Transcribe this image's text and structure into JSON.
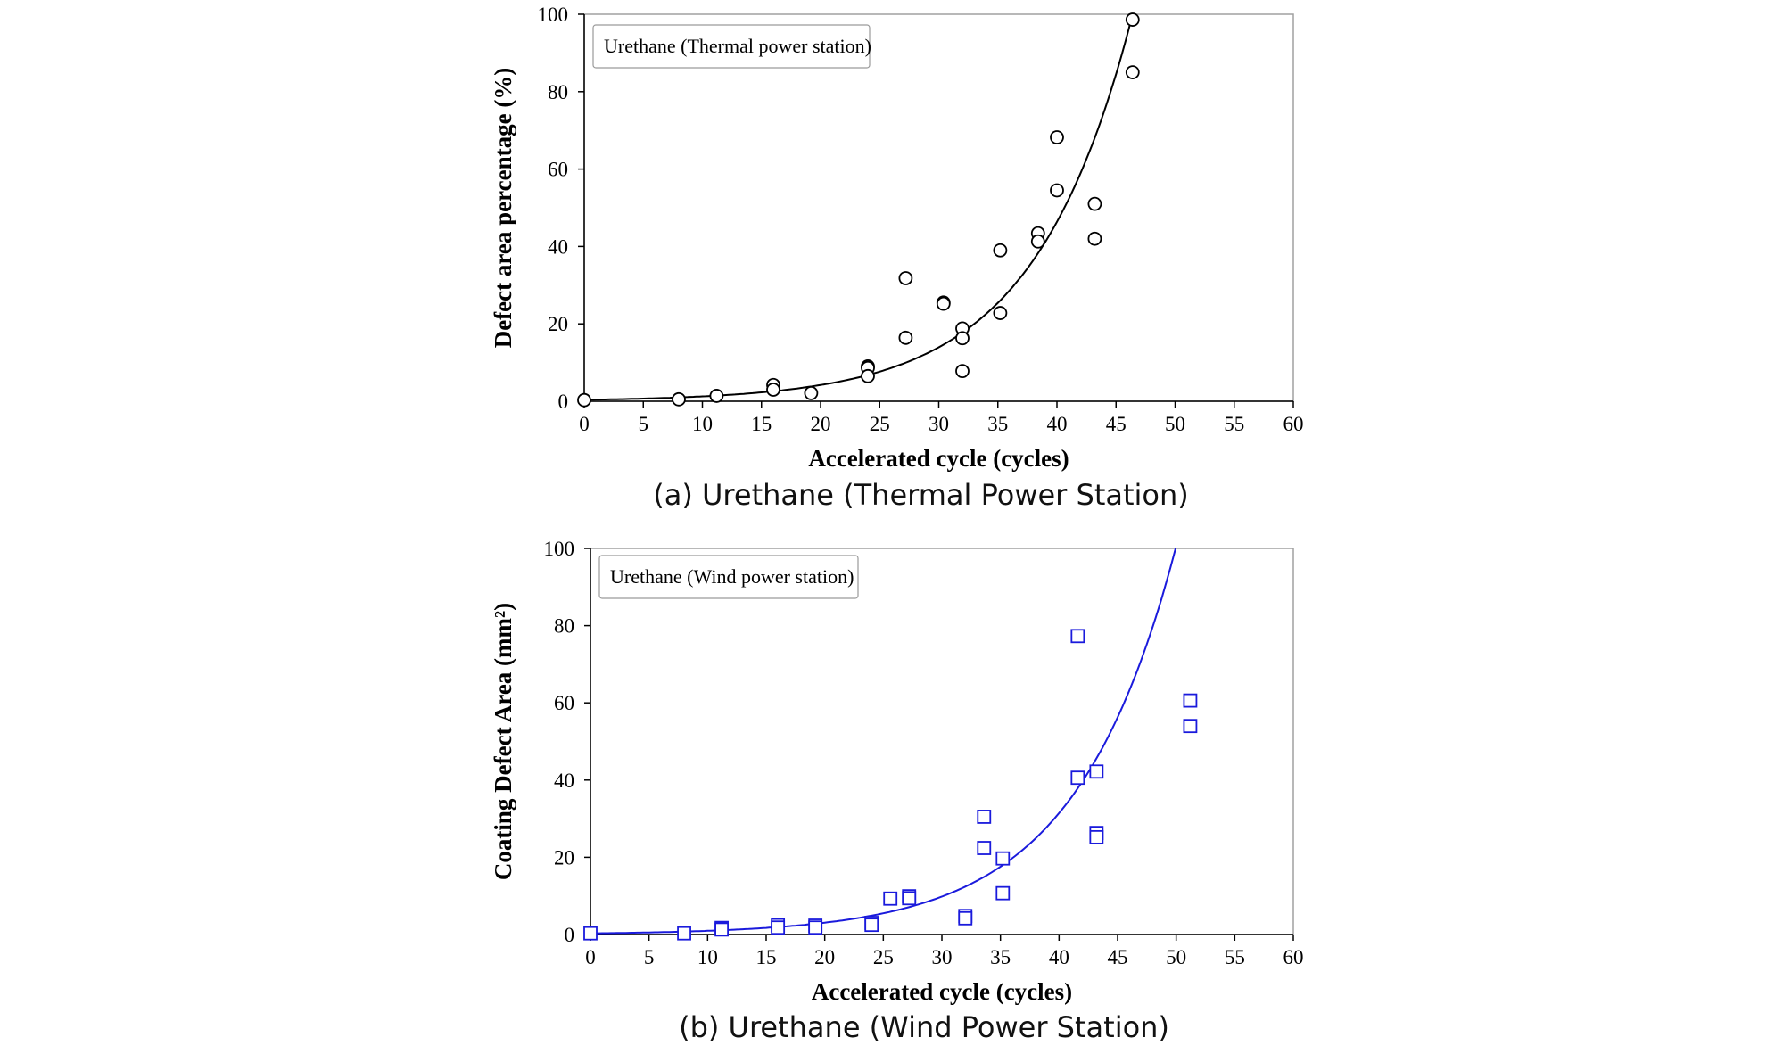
{
  "chart_data": [
    {
      "type": "scatter",
      "id": "thermal",
      "color": "#000000",
      "marker": "circle",
      "ylabel": "Defect area percentage (%)",
      "xlabel": "Accelerated cycle (cycles)",
      "legend": "Urethane (Thermal power station)",
      "legend_position": "top-left",
      "caption": "(a) Urethane (Thermal Power Station)",
      "xlim": [
        0,
        60
      ],
      "ylim": [
        0,
        100
      ],
      "xticks": [
        "0",
        "5",
        "10",
        "15",
        "20",
        "25",
        "30",
        "35",
        "40",
        "45",
        "50",
        "55",
        "60"
      ],
      "yticks": [
        "0",
        "20",
        "40",
        "60",
        "80",
        "100"
      ],
      "grid": false,
      "points": [
        {
          "x": 0,
          "y": 0.3
        },
        {
          "x": 8,
          "y": 0.5
        },
        {
          "x": 11.2,
          "y": 1.4
        },
        {
          "x": 16,
          "y": 4.2
        },
        {
          "x": 16,
          "y": 3.0
        },
        {
          "x": 19.2,
          "y": 2.1
        },
        {
          "x": 24,
          "y": 9.0
        },
        {
          "x": 24,
          "y": 8.6
        },
        {
          "x": 24,
          "y": 6.5
        },
        {
          "x": 27.2,
          "y": 31.8
        },
        {
          "x": 27.2,
          "y": 16.4
        },
        {
          "x": 30.4,
          "y": 25.5
        },
        {
          "x": 30.4,
          "y": 25.2
        },
        {
          "x": 32,
          "y": 18.8
        },
        {
          "x": 32,
          "y": 16.3
        },
        {
          "x": 32,
          "y": 7.8
        },
        {
          "x": 35.2,
          "y": 39.0
        },
        {
          "x": 35.2,
          "y": 22.8
        },
        {
          "x": 38.4,
          "y": 43.4
        },
        {
          "x": 38.4,
          "y": 41.3
        },
        {
          "x": 40,
          "y": 68.2
        },
        {
          "x": 40,
          "y": 54.5
        },
        {
          "x": 43.2,
          "y": 51.0
        },
        {
          "x": 43.2,
          "y": 42.0
        },
        {
          "x": 46.4,
          "y": 98.6
        },
        {
          "x": 46.4,
          "y": 85.0
        }
      ],
      "fit": {
        "type": "exponential",
        "a": 0.38,
        "b": 0.1201
      }
    },
    {
      "type": "scatter",
      "id": "wind",
      "color": "#1a1adc",
      "marker": "square",
      "ylabel": "Coating Defect Area (mm²)",
      "xlabel": "Accelerated cycle (cycles)",
      "legend": "Urethane (Wind power station)",
      "legend_position": "top-left",
      "caption": "(b) Urethane (Wind Power Station)",
      "xlim": [
        0,
        60
      ],
      "ylim": [
        0,
        100
      ],
      "xticks": [
        "0",
        "5",
        "10",
        "15",
        "20",
        "25",
        "30",
        "35",
        "40",
        "45",
        "50",
        "55",
        "60"
      ],
      "yticks": [
        "0",
        "20",
        "40",
        "60",
        "80",
        "100"
      ],
      "grid": false,
      "points": [
        {
          "x": 0,
          "y": 0.3
        },
        {
          "x": 8,
          "y": 0.3
        },
        {
          "x": 11.2,
          "y": 1.7
        },
        {
          "x": 11.2,
          "y": 1.3
        },
        {
          "x": 16,
          "y": 2.4
        },
        {
          "x": 16,
          "y": 1.8
        },
        {
          "x": 19.2,
          "y": 2.3
        },
        {
          "x": 19.2,
          "y": 1.8
        },
        {
          "x": 24,
          "y": 3.0
        },
        {
          "x": 24,
          "y": 2.5
        },
        {
          "x": 25.6,
          "y": 9.3
        },
        {
          "x": 27.2,
          "y": 9.9
        },
        {
          "x": 27.2,
          "y": 9.4
        },
        {
          "x": 32,
          "y": 4.8
        },
        {
          "x": 32,
          "y": 4.2
        },
        {
          "x": 33.6,
          "y": 30.5
        },
        {
          "x": 33.6,
          "y": 22.4
        },
        {
          "x": 35.2,
          "y": 19.7
        },
        {
          "x": 35.2,
          "y": 10.7
        },
        {
          "x": 41.6,
          "y": 77.3
        },
        {
          "x": 41.6,
          "y": 40.6
        },
        {
          "x": 43.2,
          "y": 42.2
        },
        {
          "x": 43.2,
          "y": 26.3
        },
        {
          "x": 43.2,
          "y": 25.2
        },
        {
          "x": 51.2,
          "y": 60.6
        },
        {
          "x": 51.2,
          "y": 54.0
        }
      ],
      "fit": {
        "type": "exponential",
        "a": 0.3,
        "b": 0.1163
      }
    }
  ]
}
